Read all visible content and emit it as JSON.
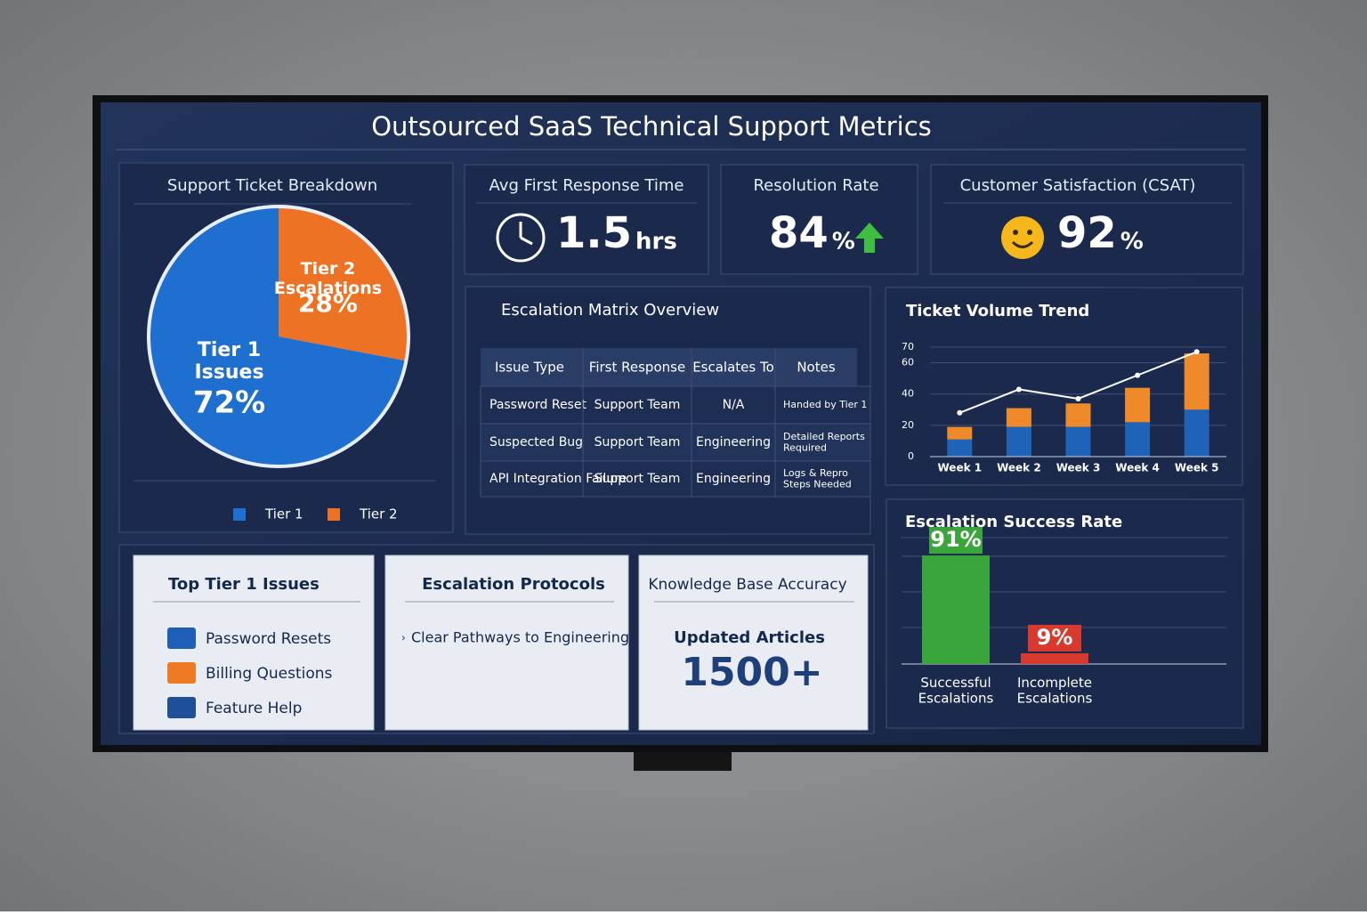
{
  "title": "Outsourced SaaS Technical Support Metrics",
  "kpis": [
    {
      "title": "Avg First Response Time",
      "value": "1.5",
      "unit": "hrs"
    },
    {
      "title": "Resolution Rate",
      "value": "84",
      "unit": "%"
    },
    {
      "title": "Customer Satisfaction (CSAT)",
      "value": "92",
      "unit": "%"
    }
  ],
  "matrix": {
    "title": "Escalation Matrix Overview",
    "headers": [
      "Issue Type",
      "First Response",
      "Escalates To",
      "Notes"
    ],
    "rows": [
      [
        "Password Reset",
        "Support Team",
        "N/A",
        "Handed by Tier 1"
      ],
      [
        "Suspected Bug",
        "Support Team",
        "Engineering",
        "Detailed Reports Required"
      ],
      [
        "API Integration Failure",
        "Support Team",
        "Engineering",
        "Logs & Repro Steps Needed"
      ]
    ]
  },
  "cards": [
    {
      "title": "Top Tier 1 Issues",
      "items": [
        "Password Resets",
        "Billing Questions",
        "Feature Help"
      ]
    },
    {
      "title": "Escalation Protocols",
      "items": [
        "Clear Pathways to Engineering"
      ]
    },
    {
      "title": "Knowledge Base Accuracy",
      "label": "Updated Articles",
      "value": "1500+"
    }
  ],
  "chart_data": [
    {
      "type": "pie",
      "title": "Support Ticket Breakdown",
      "categories": [
        "Tier 1",
        "Tier 2"
      ],
      "slice_labels": [
        "Tier 1 Issues",
        "Tier 2 Escalations"
      ],
      "values": [
        72,
        28
      ],
      "value_labels": [
        "72%",
        "28%"
      ],
      "colors": [
        "#1f6fd0",
        "#ee7224"
      ]
    },
    {
      "type": "bar",
      "title": "Ticket Volume Trend",
      "stacked": true,
      "categories": [
        "Week 1",
        "Week 2",
        "Week 3",
        "Week 4",
        "Week 5"
      ],
      "series": [
        {
          "color": "#1f63b8",
          "values": [
            11,
            19,
            19,
            22,
            30
          ]
        },
        {
          "color": "#ef8a2a",
          "values": [
            8,
            12,
            15,
            22,
            36
          ]
        },
        {
          "type": "line",
          "color": "#ffffff",
          "values": [
            28,
            43,
            37,
            52,
            67
          ]
        }
      ],
      "ylim": [
        0,
        70
      ],
      "yticks": [
        0,
        20,
        40,
        60,
        70
      ],
      "grid": true
    },
    {
      "type": "bar",
      "title": "Escalation Success Rate",
      "categories": [
        "Successful Escalations",
        "Incomplete Escalations"
      ],
      "values": [
        91,
        9
      ],
      "value_labels": [
        "91%",
        "9%"
      ],
      "colors": [
        "#3aa53a",
        "#d93a2e"
      ],
      "ylim": [
        0,
        100
      ]
    }
  ]
}
